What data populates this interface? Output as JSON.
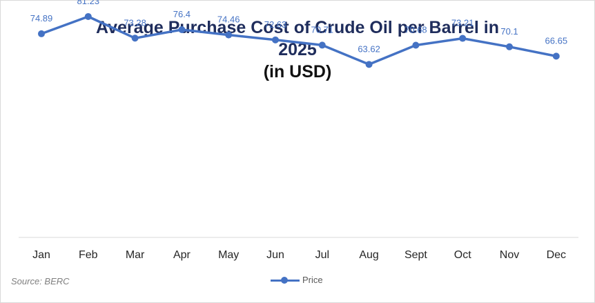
{
  "chart_data": {
    "type": "line",
    "title_line1": "Average Purchase Cost of Crude Oil per Barrel in",
    "title_line2": "2025",
    "title_line3": "(in USD)",
    "categories": [
      "Jan",
      "Feb",
      "Mar",
      "Apr",
      "May",
      "Jun",
      "Jul",
      "Aug",
      "Sept",
      "Oct",
      "Nov",
      "Dec"
    ],
    "series": [
      {
        "name": "Price",
        "values": [
          74.89,
          81.23,
          73.28,
          76.4,
          74.46,
          72.63,
          70.71,
          63.62,
          70.68,
          73.21,
          70.1,
          66.65
        ],
        "color": "#4472c4"
      }
    ],
    "ylim": [
      0,
      100
    ],
    "grid": false,
    "legend": "bottom",
    "data_labels": true,
    "source": "Source: BERC"
  }
}
